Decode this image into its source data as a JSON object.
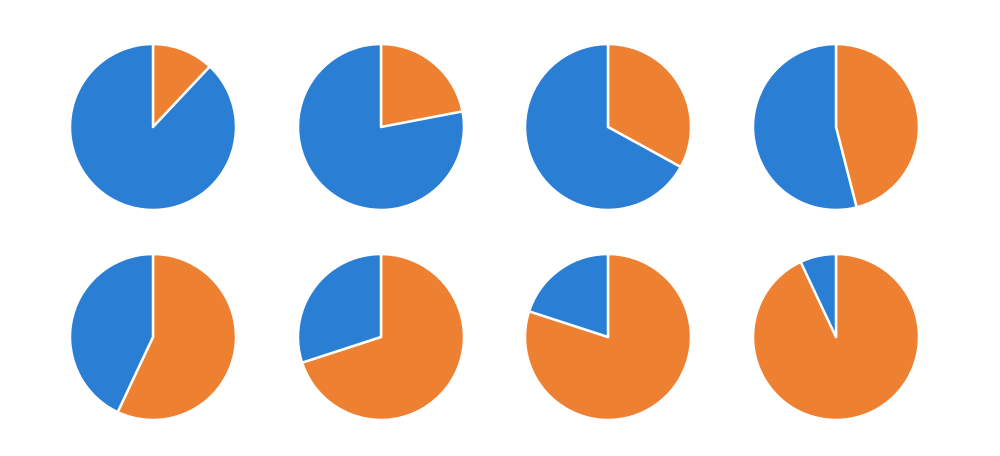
{
  "colors": {
    "primary": "#2A7FD4",
    "secondary": "#EE8032",
    "separator": "#FFFFFF"
  },
  "chart_data": [
    {
      "type": "pie",
      "slices": [
        {
          "value": 12,
          "color": "#EE8032"
        },
        {
          "value": 88,
          "color": "#2A7FD4"
        }
      ]
    },
    {
      "type": "pie",
      "slices": [
        {
          "value": 22,
          "color": "#EE8032"
        },
        {
          "value": 78,
          "color": "#2A7FD4"
        }
      ]
    },
    {
      "type": "pie",
      "slices": [
        {
          "value": 33,
          "color": "#EE8032"
        },
        {
          "value": 67,
          "color": "#2A7FD4"
        }
      ]
    },
    {
      "type": "pie",
      "slices": [
        {
          "value": 46,
          "color": "#EE8032"
        },
        {
          "value": 54,
          "color": "#2A7FD4"
        }
      ]
    },
    {
      "type": "pie",
      "slices": [
        {
          "value": 57,
          "color": "#EE8032"
        },
        {
          "value": 43,
          "color": "#2A7FD4"
        }
      ]
    },
    {
      "type": "pie",
      "slices": [
        {
          "value": 70,
          "color": "#EE8032"
        },
        {
          "value": 30,
          "color": "#2A7FD4"
        }
      ]
    },
    {
      "type": "pie",
      "slices": [
        {
          "value": 80,
          "color": "#EE8032"
        },
        {
          "value": 20,
          "color": "#2A7FD4"
        }
      ]
    },
    {
      "type": "pie",
      "slices": [
        {
          "value": 93,
          "color": "#EE8032"
        },
        {
          "value": 7,
          "color": "#2A7FD4"
        }
      ]
    }
  ]
}
